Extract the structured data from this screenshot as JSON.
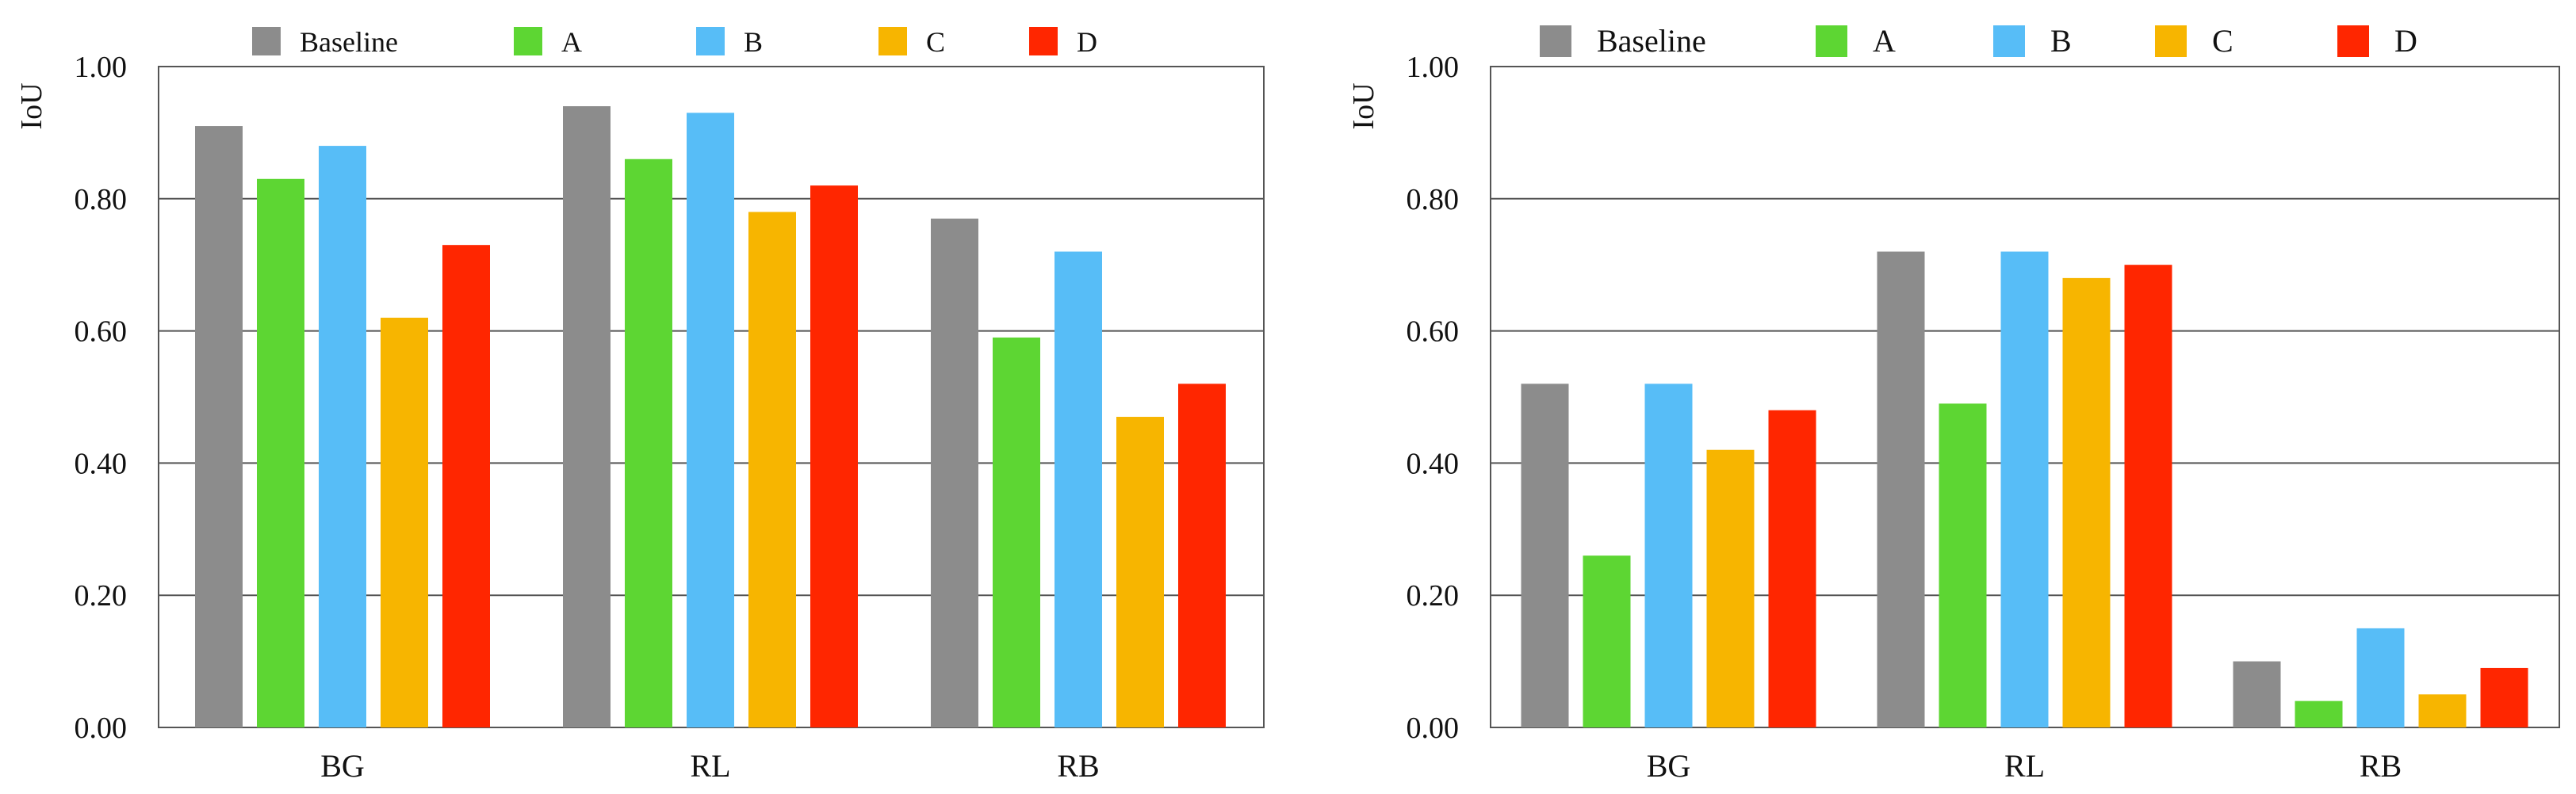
{
  "chart_data": [
    {
      "type": "bar",
      "title": "",
      "xlabel": "",
      "ylabel": "IoU",
      "ylim": [
        0,
        1
      ],
      "yticks": [
        "0.00",
        "0.20",
        "0.40",
        "0.60",
        "0.80",
        "1.00"
      ],
      "categories": [
        "BG",
        "RL",
        "RB"
      ],
      "legend_position": "top",
      "series": [
        {
          "name": "Baseline",
          "color": "#8c8c8c",
          "values": [
            0.91,
            0.94,
            0.77
          ]
        },
        {
          "name": "A",
          "color": "#5dd633",
          "values": [
            0.83,
            0.86,
            0.59
          ]
        },
        {
          "name": "B",
          "color": "#57bdf7",
          "values": [
            0.88,
            0.93,
            0.72
          ]
        },
        {
          "name": "C",
          "color": "#f7b500",
          "values": [
            0.62,
            0.78,
            0.47
          ]
        },
        {
          "name": "D",
          "color": "#ff2600",
          "values": [
            0.73,
            0.82,
            0.52
          ]
        }
      ]
    },
    {
      "type": "bar",
      "title": "",
      "xlabel": "",
      "ylabel": "IoU",
      "ylim": [
        0,
        1
      ],
      "yticks": [
        "0.00",
        "0.20",
        "0.40",
        "0.60",
        "0.80",
        "1.00"
      ],
      "categories": [
        "BG",
        "RL",
        "RB"
      ],
      "legend_position": "top",
      "series": [
        {
          "name": "Baseline",
          "color": "#8c8c8c",
          "values": [
            0.52,
            0.72,
            0.1
          ]
        },
        {
          "name": "A",
          "color": "#5dd633",
          "values": [
            0.26,
            0.49,
            0.04
          ]
        },
        {
          "name": "B",
          "color": "#57bdf7",
          "values": [
            0.52,
            0.72,
            0.15
          ]
        },
        {
          "name": "C",
          "color": "#f7b500",
          "values": [
            0.42,
            0.68,
            0.05
          ]
        },
        {
          "name": "D",
          "color": "#ff2600",
          "values": [
            0.48,
            0.7,
            0.09
          ]
        }
      ]
    }
  ]
}
